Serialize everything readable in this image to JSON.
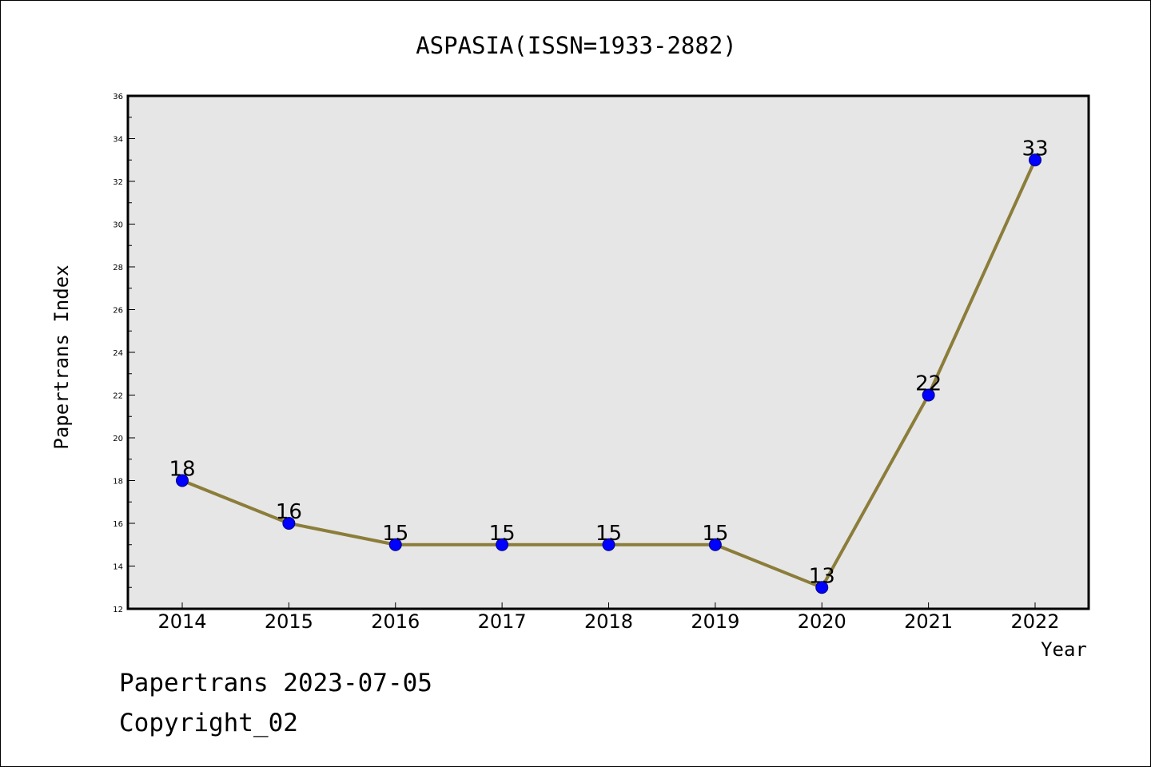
{
  "chart_data": {
    "type": "line",
    "title": "ASPASIA(ISSN=1933-2882)",
    "xlabel": "Year",
    "ylabel": "Papertrans Index",
    "categories": [
      "2014",
      "2015",
      "2016",
      "2017",
      "2018",
      "2019",
      "2020",
      "2021",
      "2022"
    ],
    "series": [
      {
        "values": [
          18,
          16,
          15,
          15,
          15,
          15,
          13,
          22,
          33
        ]
      }
    ],
    "ylim": [
      12,
      36
    ],
    "yticks": [
      12,
      14,
      16,
      18,
      20,
      22,
      24,
      26,
      28,
      30,
      32,
      34,
      36
    ],
    "grid": false,
    "legend": "none",
    "colors": {
      "line": "#8b7d3a",
      "marker_fill": "#0000ff",
      "marker_edge": "#000080",
      "plot_background": "#e6e6e6"
    }
  },
  "footer": {
    "line1": "Papertrans 2023-07-05",
    "line2": "Copyright_02"
  }
}
